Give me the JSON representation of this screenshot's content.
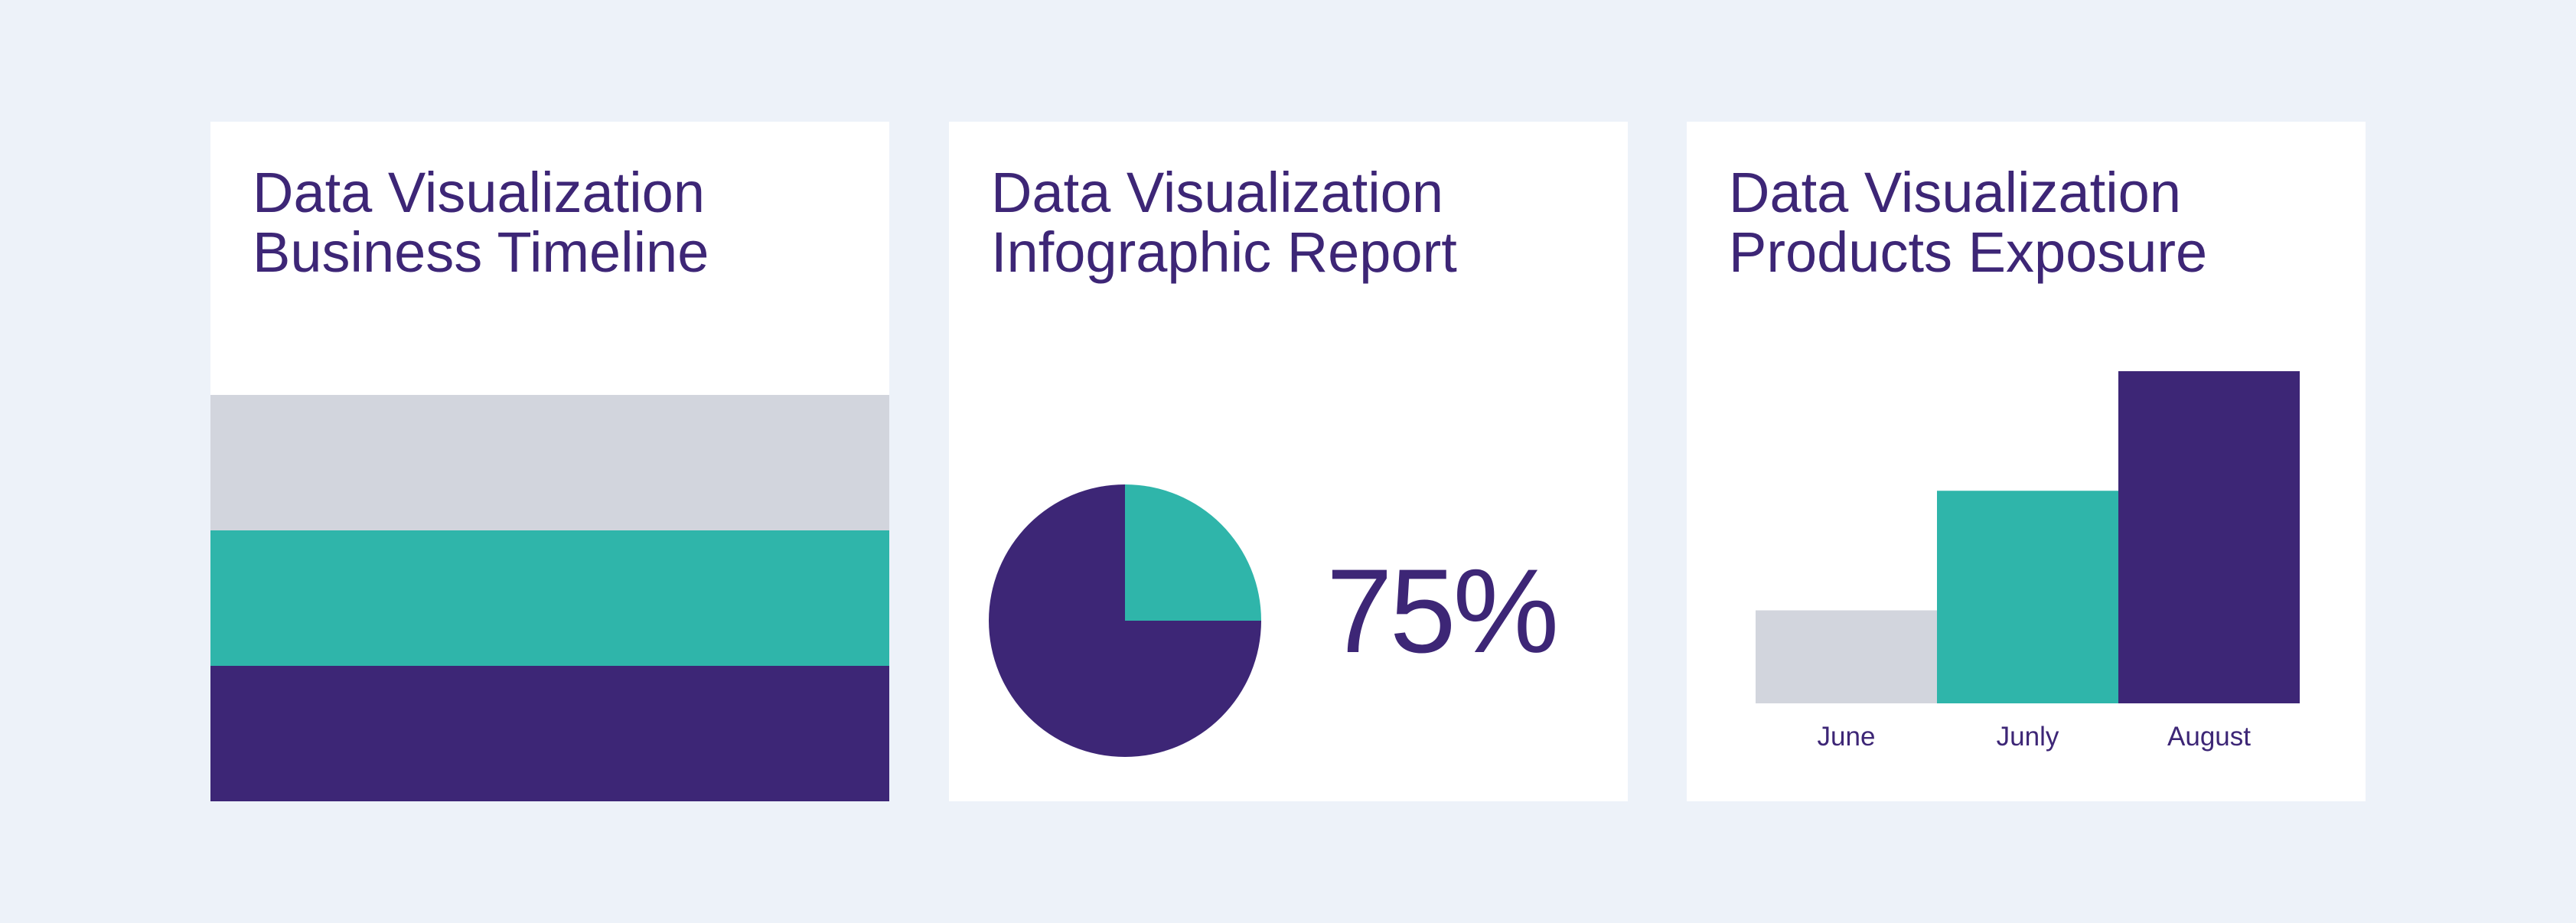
{
  "colors": {
    "background": "#edf2f9",
    "card": "#ffffff",
    "purple": "#3d2676",
    "teal": "#2fb5aa",
    "gray": "#d2d5dd"
  },
  "cards": [
    {
      "title_line1": "Data Visualization",
      "title_line2": "Business Timeline"
    },
    {
      "title_line1": "Data Visualization",
      "title_line2": "Infographic Report",
      "percent_label": "75%"
    },
    {
      "title_line1": "Data Visualization",
      "title_line2": "Products Exposure"
    }
  ],
  "chart_data": [
    {
      "type": "bar",
      "title": "Data Visualization Business Timeline",
      "orientation": "horizontal-bands",
      "series": [
        {
          "value": 1,
          "color": "#d2d5dd"
        },
        {
          "value": 1,
          "color": "#2fb5aa"
        },
        {
          "value": 1,
          "color": "#3d2676"
        }
      ]
    },
    {
      "type": "pie",
      "title": "Data Visualization Infographic Report",
      "slices": [
        {
          "value": 75,
          "color": "#3d2676"
        },
        {
          "value": 25,
          "color": "#2fb5aa"
        }
      ],
      "data_label": "75%"
    },
    {
      "type": "bar",
      "title": "Data Visualization Products Exposure",
      "categories": [
        "June",
        "Junly",
        "August"
      ],
      "values": [
        28,
        64,
        100
      ],
      "colors": [
        "#d2d5dd",
        "#2fb5aa",
        "#3d2676"
      ],
      "ylim": [
        0,
        100
      ],
      "grid": false
    }
  ]
}
